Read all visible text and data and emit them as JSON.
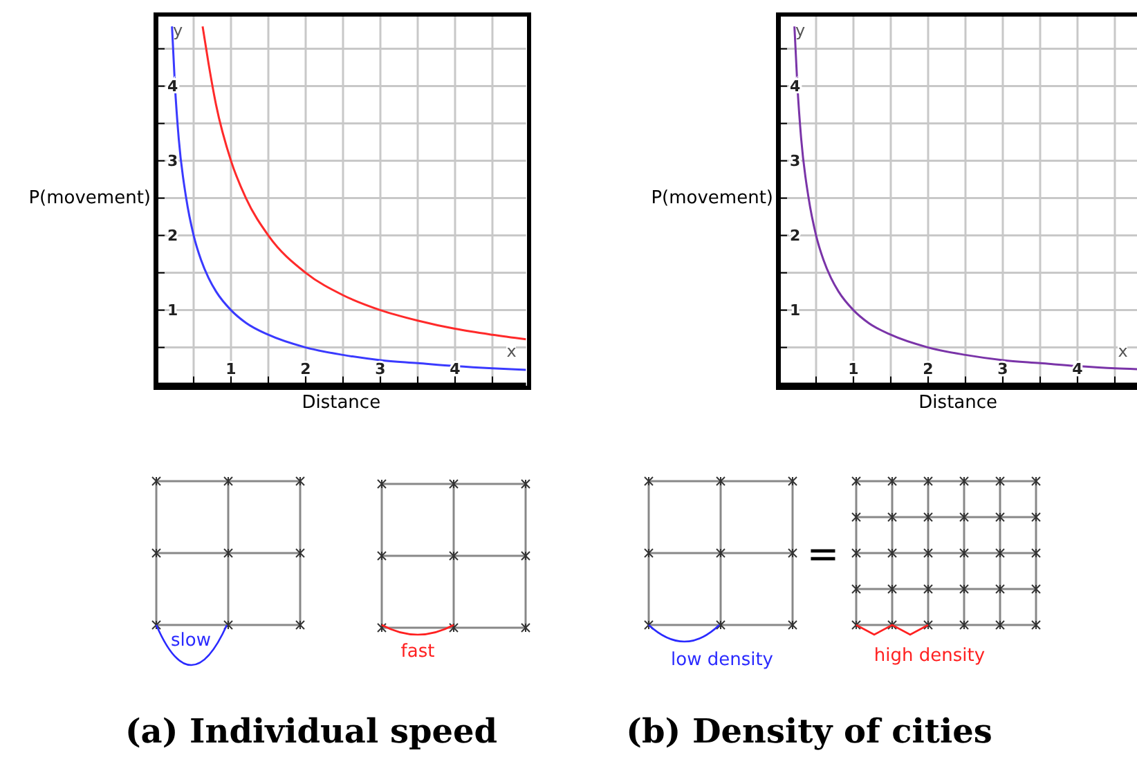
{
  "chart_data": [
    {
      "type": "line",
      "title": "(a) Individual speed",
      "xlabel": "Distance",
      "ylabel": "P(movement)",
      "annotations": [
        "y",
        "x",
        "slow",
        "fast"
      ],
      "xlim": [
        0,
        4.95
      ],
      "ylim": [
        0,
        4.95
      ],
      "xticks": [
        {
          "value": 0.5,
          "label": null
        },
        1,
        {
          "value": 1.5,
          "label": null
        },
        2,
        {
          "value": 2.5,
          "label": null
        },
        3,
        {
          "value": 3.5,
          "label": null
        },
        4,
        {
          "value": 4.5,
          "label": null
        }
      ],
      "yticks": [
        {
          "value": 0.5,
          "label": null
        },
        1,
        {
          "value": 1.5,
          "label": null
        },
        2,
        {
          "value": 2.5,
          "label": null
        },
        3,
        {
          "value": 3.5,
          "label": null
        },
        4,
        {
          "value": 4.5,
          "label": null
        }
      ],
      "grid": true,
      "marker": "none",
      "series": [
        {
          "color": "#3a3aff",
          "x": [
            0.21,
            0.25,
            0.3,
            0.4,
            0.5,
            0.6,
            0.7,
            0.8,
            1,
            1.2,
            1.5,
            2,
            2.5,
            3,
            3.5,
            4,
            4.5,
            4.95
          ],
          "values": [
            4.8,
            4,
            3.3,
            2.5,
            2,
            1.67,
            1.43,
            1.25,
            1,
            0.83,
            0.67,
            0.5,
            0.4,
            0.33,
            0.29,
            0.25,
            0.22,
            0.2
          ]
        },
        {
          "color": "#ff2a2a",
          "x": [
            0.62,
            0.7,
            0.8,
            1,
            1.2,
            1.5,
            2,
            2.5,
            3,
            3.5,
            4,
            4.5,
            4.95
          ],
          "values": [
            4.8,
            4.3,
            3.75,
            3,
            2.5,
            2,
            1.5,
            1.2,
            1,
            0.86,
            0.75,
            0.67,
            0.61
          ]
        }
      ]
    },
    {
      "type": "line",
      "title": "(b) Density of cities",
      "xlabel": "Distance",
      "ylabel": "P(movement)",
      "annotations": [
        "y",
        "x",
        "low density",
        "=",
        "high density"
      ],
      "xlim": [
        0,
        4.8
      ],
      "ylim": [
        0,
        4.95
      ],
      "xticks": [
        {
          "value": 0.5,
          "label": null
        },
        1,
        {
          "value": 1.5,
          "label": null
        },
        2,
        {
          "value": 2.5,
          "label": null
        },
        3,
        {
          "value": 3.5,
          "label": null
        },
        4,
        {
          "value": 4.5,
          "label": null
        }
      ],
      "yticks": [
        {
          "value": 0.5,
          "label": null
        },
        1,
        {
          "value": 1.5,
          "label": null
        },
        2,
        {
          "value": 2.5,
          "label": null
        },
        3,
        {
          "value": 3.5,
          "label": null
        },
        4,
        {
          "value": 4.5,
          "label": null
        }
      ],
      "grid": true,
      "marker": "none",
      "series": [
        {
          "color": "#7a34a8",
          "x": [
            0.21,
            0.25,
            0.3,
            0.4,
            0.5,
            0.6,
            0.7,
            0.8,
            1,
            1.2,
            1.5,
            2,
            2.5,
            3,
            3.5,
            4,
            4.5,
            4.8
          ],
          "values": [
            4.8,
            4,
            3.3,
            2.5,
            2,
            1.67,
            1.43,
            1.25,
            1,
            0.83,
            0.67,
            0.5,
            0.4,
            0.33,
            0.29,
            0.25,
            0.22,
            0.21
          ]
        }
      ]
    }
  ]
}
